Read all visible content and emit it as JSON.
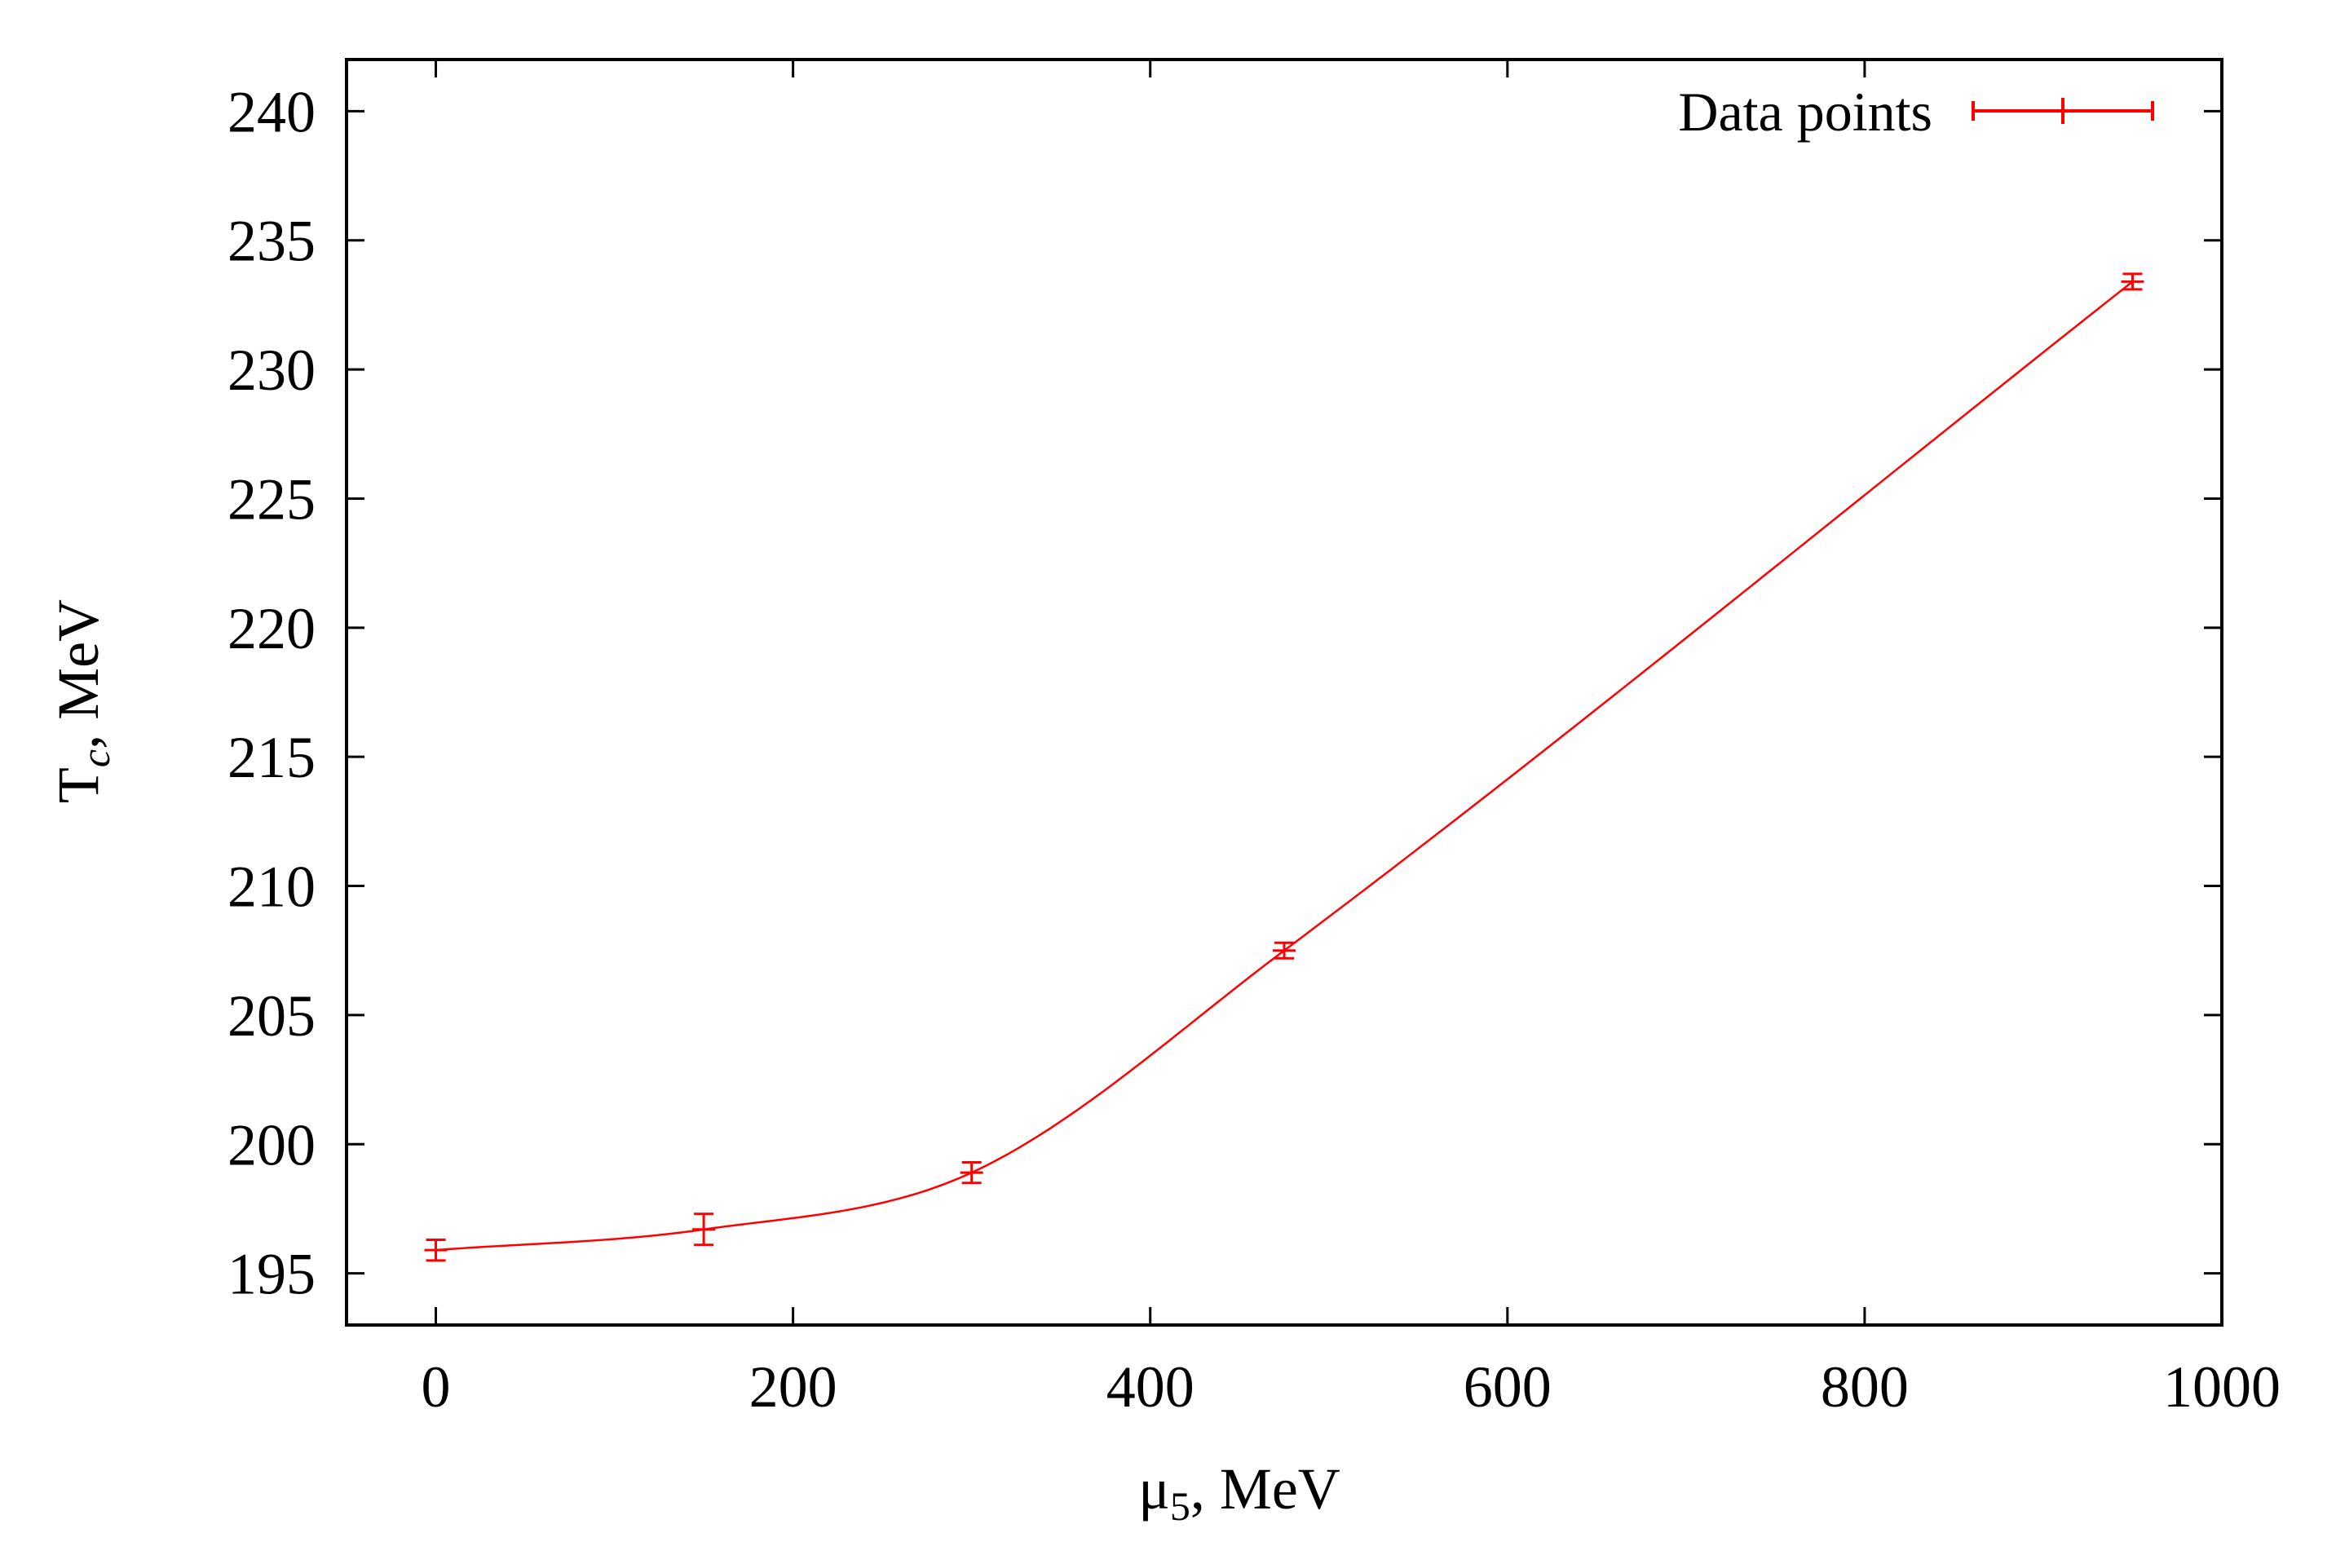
{
  "chart_data": {
    "type": "line",
    "x_axis": {
      "label_main": "μ",
      "label_sub": "5",
      "label_rest": ", MeV",
      "range": [
        -50,
        1000
      ],
      "ticks": [
        0,
        200,
        400,
        600,
        800,
        1000
      ],
      "tick_labels": [
        "0",
        "200",
        "400",
        "600",
        "800",
        "1000"
      ]
    },
    "y_axis": {
      "label_main": "T",
      "label_sub": "c",
      "label_rest": ", MeV",
      "range": [
        193,
        242
      ],
      "ticks": [
        195,
        200,
        205,
        210,
        215,
        220,
        225,
        230,
        235,
        240
      ],
      "tick_labels": [
        "195",
        "200",
        "205",
        "210",
        "215",
        "220",
        "225",
        "230",
        "235",
        "240"
      ]
    },
    "grid": false,
    "legend": {
      "position": "top-right",
      "entries": [
        "Data points"
      ]
    },
    "series": [
      {
        "name": "Data points",
        "color": "#ff0000",
        "points": [
          {
            "x": 0,
            "y": 195.9,
            "err": 0.4
          },
          {
            "x": 150,
            "y": 196.7,
            "err": 0.6
          },
          {
            "x": 300,
            "y": 198.9,
            "err": 0.4
          },
          {
            "x": 475,
            "y": 207.5,
            "err": 0.3
          },
          {
            "x": 950,
            "y": 233.4,
            "err": 0.3
          }
        ]
      }
    ]
  }
}
